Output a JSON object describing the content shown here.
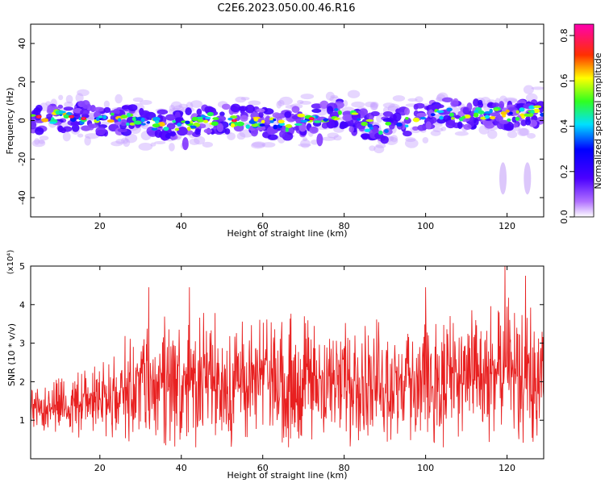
{
  "title": "C2E6.2023.050.00.46.R16",
  "chart_data": [
    {
      "type": "heatmap",
      "xlabel": "Height of straight line (km)",
      "ylabel": "Frequency (Hz)",
      "xlim": [
        3,
        129
      ],
      "ylim": [
        -50,
        50
      ],
      "x_ticks": [
        20,
        40,
        60,
        80,
        100,
        120
      ],
      "y_ticks": [
        -40,
        -20,
        0,
        20,
        40
      ],
      "grid": false,
      "colorbar": {
        "label": "Normalized spectral amplitude",
        "range": [
          0.0,
          0.85
        ],
        "ticks": [
          0.0,
          0.2,
          0.4,
          0.6,
          0.8
        ],
        "colormap": "rainbow (purple-blue-cyan-green-yellow-red-magenta)"
      },
      "ridge": {
        "description": "central frequency band of spectral energy vs height",
        "x": [
          3,
          5,
          7,
          9,
          12,
          16,
          20,
          25,
          30,
          35,
          40,
          45,
          50,
          55,
          60,
          65,
          70,
          75,
          80,
          85,
          90,
          95,
          100,
          105,
          110,
          115,
          120,
          125,
          129
        ],
        "y": [
          2,
          0,
          -3,
          3,
          1,
          2,
          0,
          1,
          -1,
          -2,
          -3,
          0,
          1,
          0,
          -1,
          -3,
          0,
          2,
          4,
          -2,
          -4,
          0,
          2,
          4,
          3,
          4,
          3,
          4,
          5
        ]
      },
      "isolated_features": [
        {
          "x": 74,
          "y": -10
        },
        {
          "x": 41,
          "y": -12
        },
        {
          "x": 119,
          "y": -30
        },
        {
          "x": 125,
          "y": -30
        }
      ]
    },
    {
      "type": "line",
      "xlabel": "Height of straight line (km)",
      "ylabel": "SNR (10 * v/v)",
      "y_multiplier": "(x10⁴)",
      "xlim": [
        3,
        129
      ],
      "ylim": [
        0,
        5
      ],
      "x_ticks": [
        20,
        40,
        60,
        80,
        100,
        120
      ],
      "y_ticks": [
        1,
        2,
        3,
        4,
        5
      ],
      "grid": false,
      "series": [
        {
          "color": "#e82020",
          "envelope": {
            "x": [
              3,
              10,
              20,
              25,
              30,
              35,
              40,
              50,
              60,
              70,
              80,
              90,
              100,
              110,
              115,
              120,
              125,
              129
            ],
            "low": [
              0.8,
              0.6,
              0.5,
              0.4,
              0.3,
              0.3,
              0.3,
              0.3,
              0.3,
              0.3,
              0.3,
              0.3,
              0.3,
              0.3,
              0.3,
              0.3,
              0.3,
              0.4
            ],
            "high": [
              2.0,
              2.5,
              2.9,
              3.3,
              3.9,
              4.0,
              4.0,
              4.2,
              4.1,
              4.2,
              4.1,
              4.1,
              4.2,
              4.3,
              4.3,
              4.6,
              4.4,
              3.8
            ]
          },
          "peaks": [
            {
              "x": 32,
              "y": 4.45
            },
            {
              "x": 42,
              "y": 4.45
            },
            {
              "x": 100,
              "y": 4.45
            },
            {
              "x": 119.5,
              "y": 5.05
            },
            {
              "x": 124.5,
              "y": 4.75
            }
          ]
        }
      ]
    }
  ]
}
